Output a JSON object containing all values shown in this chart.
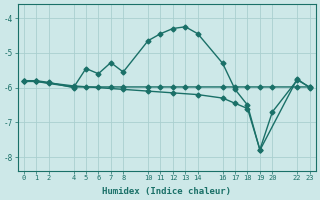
{
  "bg_color": "#cde8e8",
  "grid_color": "#aacfcf",
  "line_color": "#1a7068",
  "xlabel": "Humidex (Indice chaleur)",
  "xlim": [
    -0.5,
    23.5
  ],
  "ylim": [
    -8.4,
    -3.6
  ],
  "yticks": [
    -8,
    -7,
    -6,
    -5,
    -4
  ],
  "xticks": [
    0,
    1,
    2,
    4,
    5,
    6,
    7,
    8,
    10,
    11,
    12,
    13,
    14,
    16,
    17,
    18,
    19,
    20,
    22,
    23
  ],
  "line1_x": [
    0,
    1,
    2,
    4,
    5,
    6,
    7,
    8,
    10,
    11,
    12,
    13,
    14,
    16,
    17,
    18,
    19,
    22,
    23
  ],
  "line1_y": [
    -5.8,
    -5.8,
    -5.85,
    -6.0,
    -5.45,
    -5.6,
    -5.28,
    -5.55,
    -4.65,
    -4.45,
    -4.3,
    -4.25,
    -4.45,
    -5.3,
    -6.05,
    -6.5,
    -7.8,
    -5.75,
    -6.0
  ],
  "line2_x": [
    0,
    1,
    2,
    4,
    5,
    6,
    7,
    8,
    10,
    11,
    12,
    13,
    14,
    16,
    17,
    18,
    19,
    20,
    22,
    23
  ],
  "line2_y": [
    -5.82,
    -5.82,
    -5.88,
    -5.98,
    -5.98,
    -5.98,
    -5.98,
    -5.98,
    -5.98,
    -5.98,
    -5.98,
    -5.98,
    -5.98,
    -5.98,
    -5.98,
    -5.98,
    -5.98,
    -5.98,
    -5.98,
    -5.98
  ],
  "line3_x": [
    0,
    1,
    4,
    8,
    10,
    12,
    14,
    16,
    17,
    18,
    19,
    20,
    22,
    23
  ],
  "line3_y": [
    -5.82,
    -5.82,
    -5.95,
    -6.05,
    -6.1,
    -6.15,
    -6.2,
    -6.3,
    -6.45,
    -6.6,
    -7.78,
    -6.7,
    -5.78,
    -5.98
  ],
  "marker": "D",
  "marker_size": 2.5,
  "linewidth": 1.0
}
